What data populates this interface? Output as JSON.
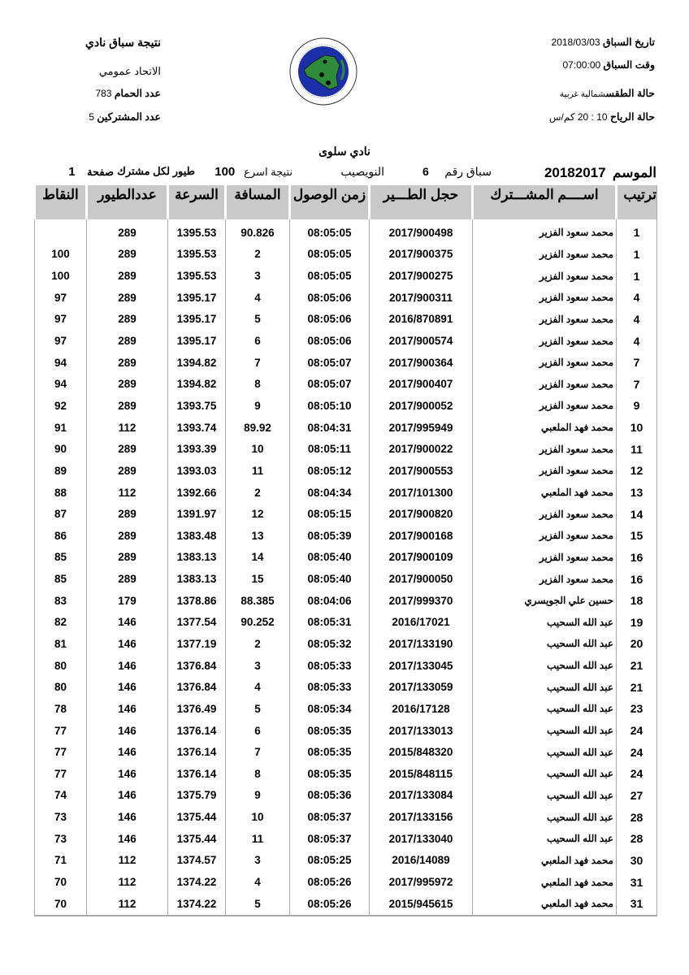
{
  "header_right": {
    "race_date_label": "تاريخ السباق",
    "race_date": "2018/03/03",
    "race_time_label": "وقت السباق",
    "race_time": "07:00:00",
    "weather_label": "حالة الطقس",
    "weather": "شمالية غربية",
    "wind_label": "حالة الرياح",
    "wind": "10 : 20 كم/س"
  },
  "header_left": {
    "title": "نتيجة سباق نادي",
    "union": "الاتحاد عمومي",
    "pigeons_label": "عدد الحمام",
    "pigeons": "783",
    "participants_label": "عدد المشتركين",
    "participants": "5"
  },
  "logo": {
    "text_ar": "الاتحاد الكويتي لسباق حمام الزاجل",
    "text_en": "KUWAIT FEDERATION FOR RACING PIGEON",
    "colors": {
      "ring": "#1b2fa8",
      "land": "#2e8b3a"
    }
  },
  "club": "نادي سلوى",
  "race_info": {
    "season_label": "الموسم",
    "season": "20182017",
    "race_no_label": "سباق رقم",
    "race_no": "6",
    "location": "النويصيب",
    "fastest_label": "نتيجة اسرع",
    "fastest": "100",
    "per_label": "طيور لكل مشترك",
    "page_label": "صفحة",
    "page": "1"
  },
  "table": {
    "headers": [
      "ترتيب",
      "اســــم المشـــترك",
      "حجل الطـــير",
      "زمن الوصول",
      "المسافة",
      "السرعة",
      "عددالطيور",
      "النقاط"
    ],
    "rows": [
      [
        "1",
        "محمد سعود الفزير",
        "2017/900498",
        "08:05:05",
        "90.826",
        "1395.53",
        "289",
        ""
      ],
      [
        "1",
        "محمد سعود الفزير",
        "2017/900375",
        "08:05:05",
        "2",
        "1395.53",
        "289",
        "100"
      ],
      [
        "1",
        "محمد سعود الفزير",
        "2017/900275",
        "08:05:05",
        "3",
        "1395.53",
        "289",
        "100"
      ],
      [
        "4",
        "محمد سعود الفزير",
        "2017/900311",
        "08:05:06",
        "4",
        "1395.17",
        "289",
        "97"
      ],
      [
        "4",
        "محمد سعود الفزير",
        "2016/870891",
        "08:05:06",
        "5",
        "1395.17",
        "289",
        "97"
      ],
      [
        "4",
        "محمد سعود الفزير",
        "2017/900574",
        "08:05:06",
        "6",
        "1395.17",
        "289",
        "97"
      ],
      [
        "7",
        "محمد سعود الفزير",
        "2017/900364",
        "08:05:07",
        "7",
        "1394.82",
        "289",
        "94"
      ],
      [
        "7",
        "محمد سعود الفزير",
        "2017/900407",
        "08:05:07",
        "8",
        "1394.82",
        "289",
        "94"
      ],
      [
        "9",
        "محمد سعود الفزير",
        "2017/900052",
        "08:05:10",
        "9",
        "1393.75",
        "289",
        "92"
      ],
      [
        "10",
        "محمد فهد الملعبي",
        "2017/995949",
        "08:04:31",
        "89.92",
        "1393.74",
        "112",
        "91"
      ],
      [
        "11",
        "محمد سعود الفزير",
        "2017/900022",
        "08:05:11",
        "10",
        "1393.39",
        "289",
        "90"
      ],
      [
        "12",
        "محمد سعود الفزير",
        "2017/900553",
        "08:05:12",
        "11",
        "1393.03",
        "289",
        "89"
      ],
      [
        "13",
        "محمد فهد الملعبي",
        "2017/101300",
        "08:04:34",
        "2",
        "1392.66",
        "112",
        "88"
      ],
      [
        "14",
        "محمد سعود الفزير",
        "2017/900820",
        "08:05:15",
        "12",
        "1391.97",
        "289",
        "87"
      ],
      [
        "15",
        "محمد سعود الفزير",
        "2017/900168",
        "08:05:39",
        "13",
        "1383.48",
        "289",
        "86"
      ],
      [
        "16",
        "محمد سعود الفزير",
        "2017/900109",
        "08:05:40",
        "14",
        "1383.13",
        "289",
        "85"
      ],
      [
        "16",
        "محمد سعود الفزير",
        "2017/900050",
        "08:05:40",
        "15",
        "1383.13",
        "289",
        "85"
      ],
      [
        "18",
        "حسين علي الجويسري",
        "2017/999370",
        "08:04:06",
        "88.385",
        "1378.86",
        "179",
        "83"
      ],
      [
        "19",
        "عبد الله السحيب",
        "2016/17021",
        "08:05:31",
        "90.252",
        "1377.54",
        "146",
        "82"
      ],
      [
        "20",
        "عبد الله السحيب",
        "2017/133190",
        "08:05:32",
        "2",
        "1377.19",
        "146",
        "81"
      ],
      [
        "21",
        "عبد الله السحيب",
        "2017/133045",
        "08:05:33",
        "3",
        "1376.84",
        "146",
        "80"
      ],
      [
        "21",
        "عبد الله السحيب",
        "2017/133059",
        "08:05:33",
        "4",
        "1376.84",
        "146",
        "80"
      ],
      [
        "23",
        "عبد الله السحيب",
        "2016/17128",
        "08:05:34",
        "5",
        "1376.49",
        "146",
        "78"
      ],
      [
        "24",
        "عبد الله السحيب",
        "2017/133013",
        "08:05:35",
        "6",
        "1376.14",
        "146",
        "77"
      ],
      [
        "24",
        "عبد الله السحيب",
        "2015/848320",
        "08:05:35",
        "7",
        "1376.14",
        "146",
        "77"
      ],
      [
        "24",
        "عبد الله السحيب",
        "2015/848115",
        "08:05:35",
        "8",
        "1376.14",
        "146",
        "77"
      ],
      [
        "27",
        "عبد الله السحيب",
        "2017/133084",
        "08:05:36",
        "9",
        "1375.79",
        "146",
        "74"
      ],
      [
        "28",
        "عبد الله السحيب",
        "2017/133156",
        "08:05:37",
        "10",
        "1375.44",
        "146",
        "73"
      ],
      [
        "28",
        "عبد الله السحيب",
        "2017/133040",
        "08:05:37",
        "11",
        "1375.44",
        "146",
        "73"
      ],
      [
        "30",
        "محمد فهد الملعبي",
        "2016/14089",
        "08:05:25",
        "3",
        "1374.57",
        "112",
        "71"
      ],
      [
        "31",
        "محمد فهد الملعبي",
        "2017/995972",
        "08:05:26",
        "4",
        "1374.22",
        "112",
        "70"
      ],
      [
        "31",
        "محمد فهد الملعبي",
        "2015/945615",
        "08:05:26",
        "5",
        "1374.22",
        "112",
        "70"
      ]
    ]
  }
}
